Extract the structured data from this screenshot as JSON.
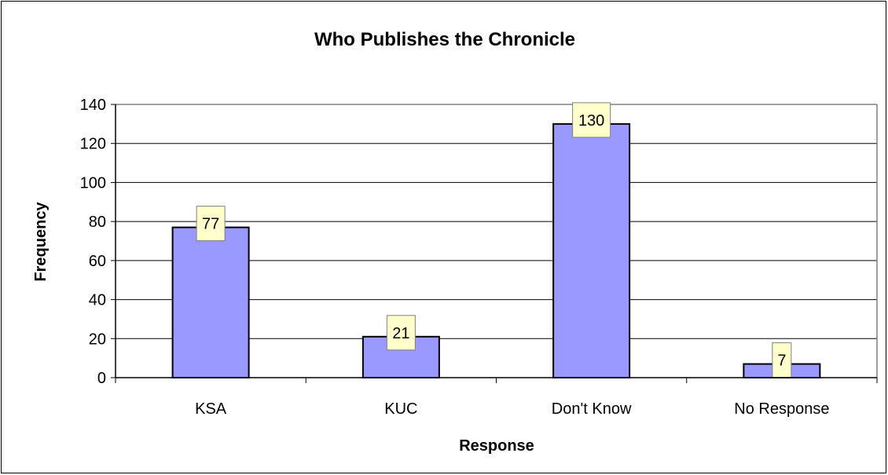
{
  "chart_data": {
    "type": "bar",
    "title": "Who Publishes the Chronicle",
    "xlabel": "Response",
    "ylabel": "Frequency",
    "categories": [
      "KSA",
      "KUC",
      "Don't Know",
      "No Response"
    ],
    "values": [
      77,
      21,
      130,
      7
    ],
    "data_labels": [
      "77",
      "21",
      "130",
      "7"
    ],
    "ylim": [
      0,
      140
    ],
    "yticks": [
      "0",
      "20",
      "40",
      "60",
      "80",
      "100",
      "120",
      "140"
    ],
    "grid": true,
    "legend": "none",
    "colors": {
      "bar_fill": "#9999ff",
      "bar_stroke": "#000000",
      "label_fill": "#ffffcc",
      "gridline": "#000000",
      "plot_border": "#808080"
    }
  }
}
